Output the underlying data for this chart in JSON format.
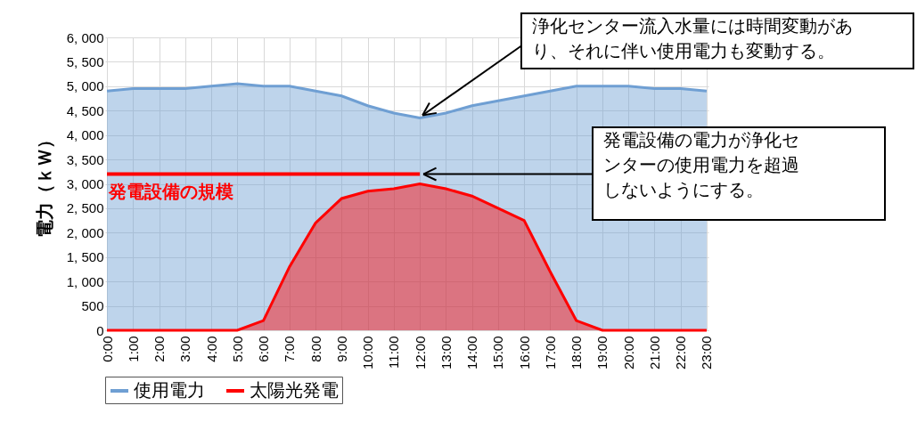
{
  "chart_data": {
    "type": "area",
    "ylabel": "電力（ｋＷ）",
    "categories": [
      "0:00",
      "1:00",
      "2:00",
      "3:00",
      "4:00",
      "5:00",
      "6:00",
      "7:00",
      "8:00",
      "9:00",
      "10:00",
      "11:00",
      "12:00",
      "13:00",
      "14:00",
      "15:00",
      "16:00",
      "17:00",
      "18:00",
      "19:00",
      "20:00",
      "21:00",
      "22:00",
      "23:00"
    ],
    "series": [
      {
        "name": "使用電力",
        "color": "#6f9fd3",
        "values": [
          4900,
          4950,
          4950,
          4950,
          5000,
          5050,
          5000,
          5000,
          4900,
          4800,
          4600,
          4450,
          4350,
          4450,
          4600,
          4700,
          4800,
          4900,
          5000,
          5000,
          5000,
          4950,
          4950,
          4900
        ]
      },
      {
        "name": "太陽光発電",
        "color": "#ff0000",
        "values": [
          0,
          0,
          0,
          0,
          0,
          0,
          200,
          1300,
          2200,
          2700,
          2850,
          2900,
          3000,
          2900,
          2750,
          2500,
          2250,
          1200,
          200,
          0,
          0,
          0,
          0,
          0
        ]
      },
      {
        "name": "発電設備の規模",
        "type": "line",
        "color": "#ff0000",
        "values": [
          3200,
          3200,
          3200,
          3200,
          3200,
          3200,
          3200,
          3200,
          3200,
          3200,
          3200,
          3200,
          3200,
          null,
          null,
          null,
          null,
          null,
          null,
          null,
          null,
          null,
          null,
          null
        ]
      }
    ],
    "ylim": [
      0,
      6000
    ],
    "yticks": [
      {
        "value": 0,
        "label": "0"
      },
      {
        "value": 500,
        "label": "500"
      },
      {
        "value": 1000,
        "label": "1, 000"
      },
      {
        "value": 1500,
        "label": "1, 500"
      },
      {
        "value": 2000,
        "label": "2, 000"
      },
      {
        "value": 2500,
        "label": "2, 500"
      },
      {
        "value": 3000,
        "label": "3, 000"
      },
      {
        "value": 3500,
        "label": "3, 500"
      },
      {
        "value": 4000,
        "label": "4, 000"
      },
      {
        "value": 4500,
        "label": "4, 500"
      },
      {
        "value": 5000,
        "label": "5, 000"
      },
      {
        "value": 5500,
        "label": "5, 500"
      },
      {
        "value": 6000,
        "label": "6, 000"
      }
    ],
    "grid": true,
    "legend": "bottom",
    "annotations": [
      {
        "text": "浄化センター流入水量には時間変動があり、それに伴い使用電力も変動する。",
        "x": "12:00",
        "y": 4350
      },
      {
        "text": "発電設備の電力が浄化センターの使用電力を超過しないようにする。",
        "x": "12:00",
        "y": 3200
      }
    ]
  }
}
